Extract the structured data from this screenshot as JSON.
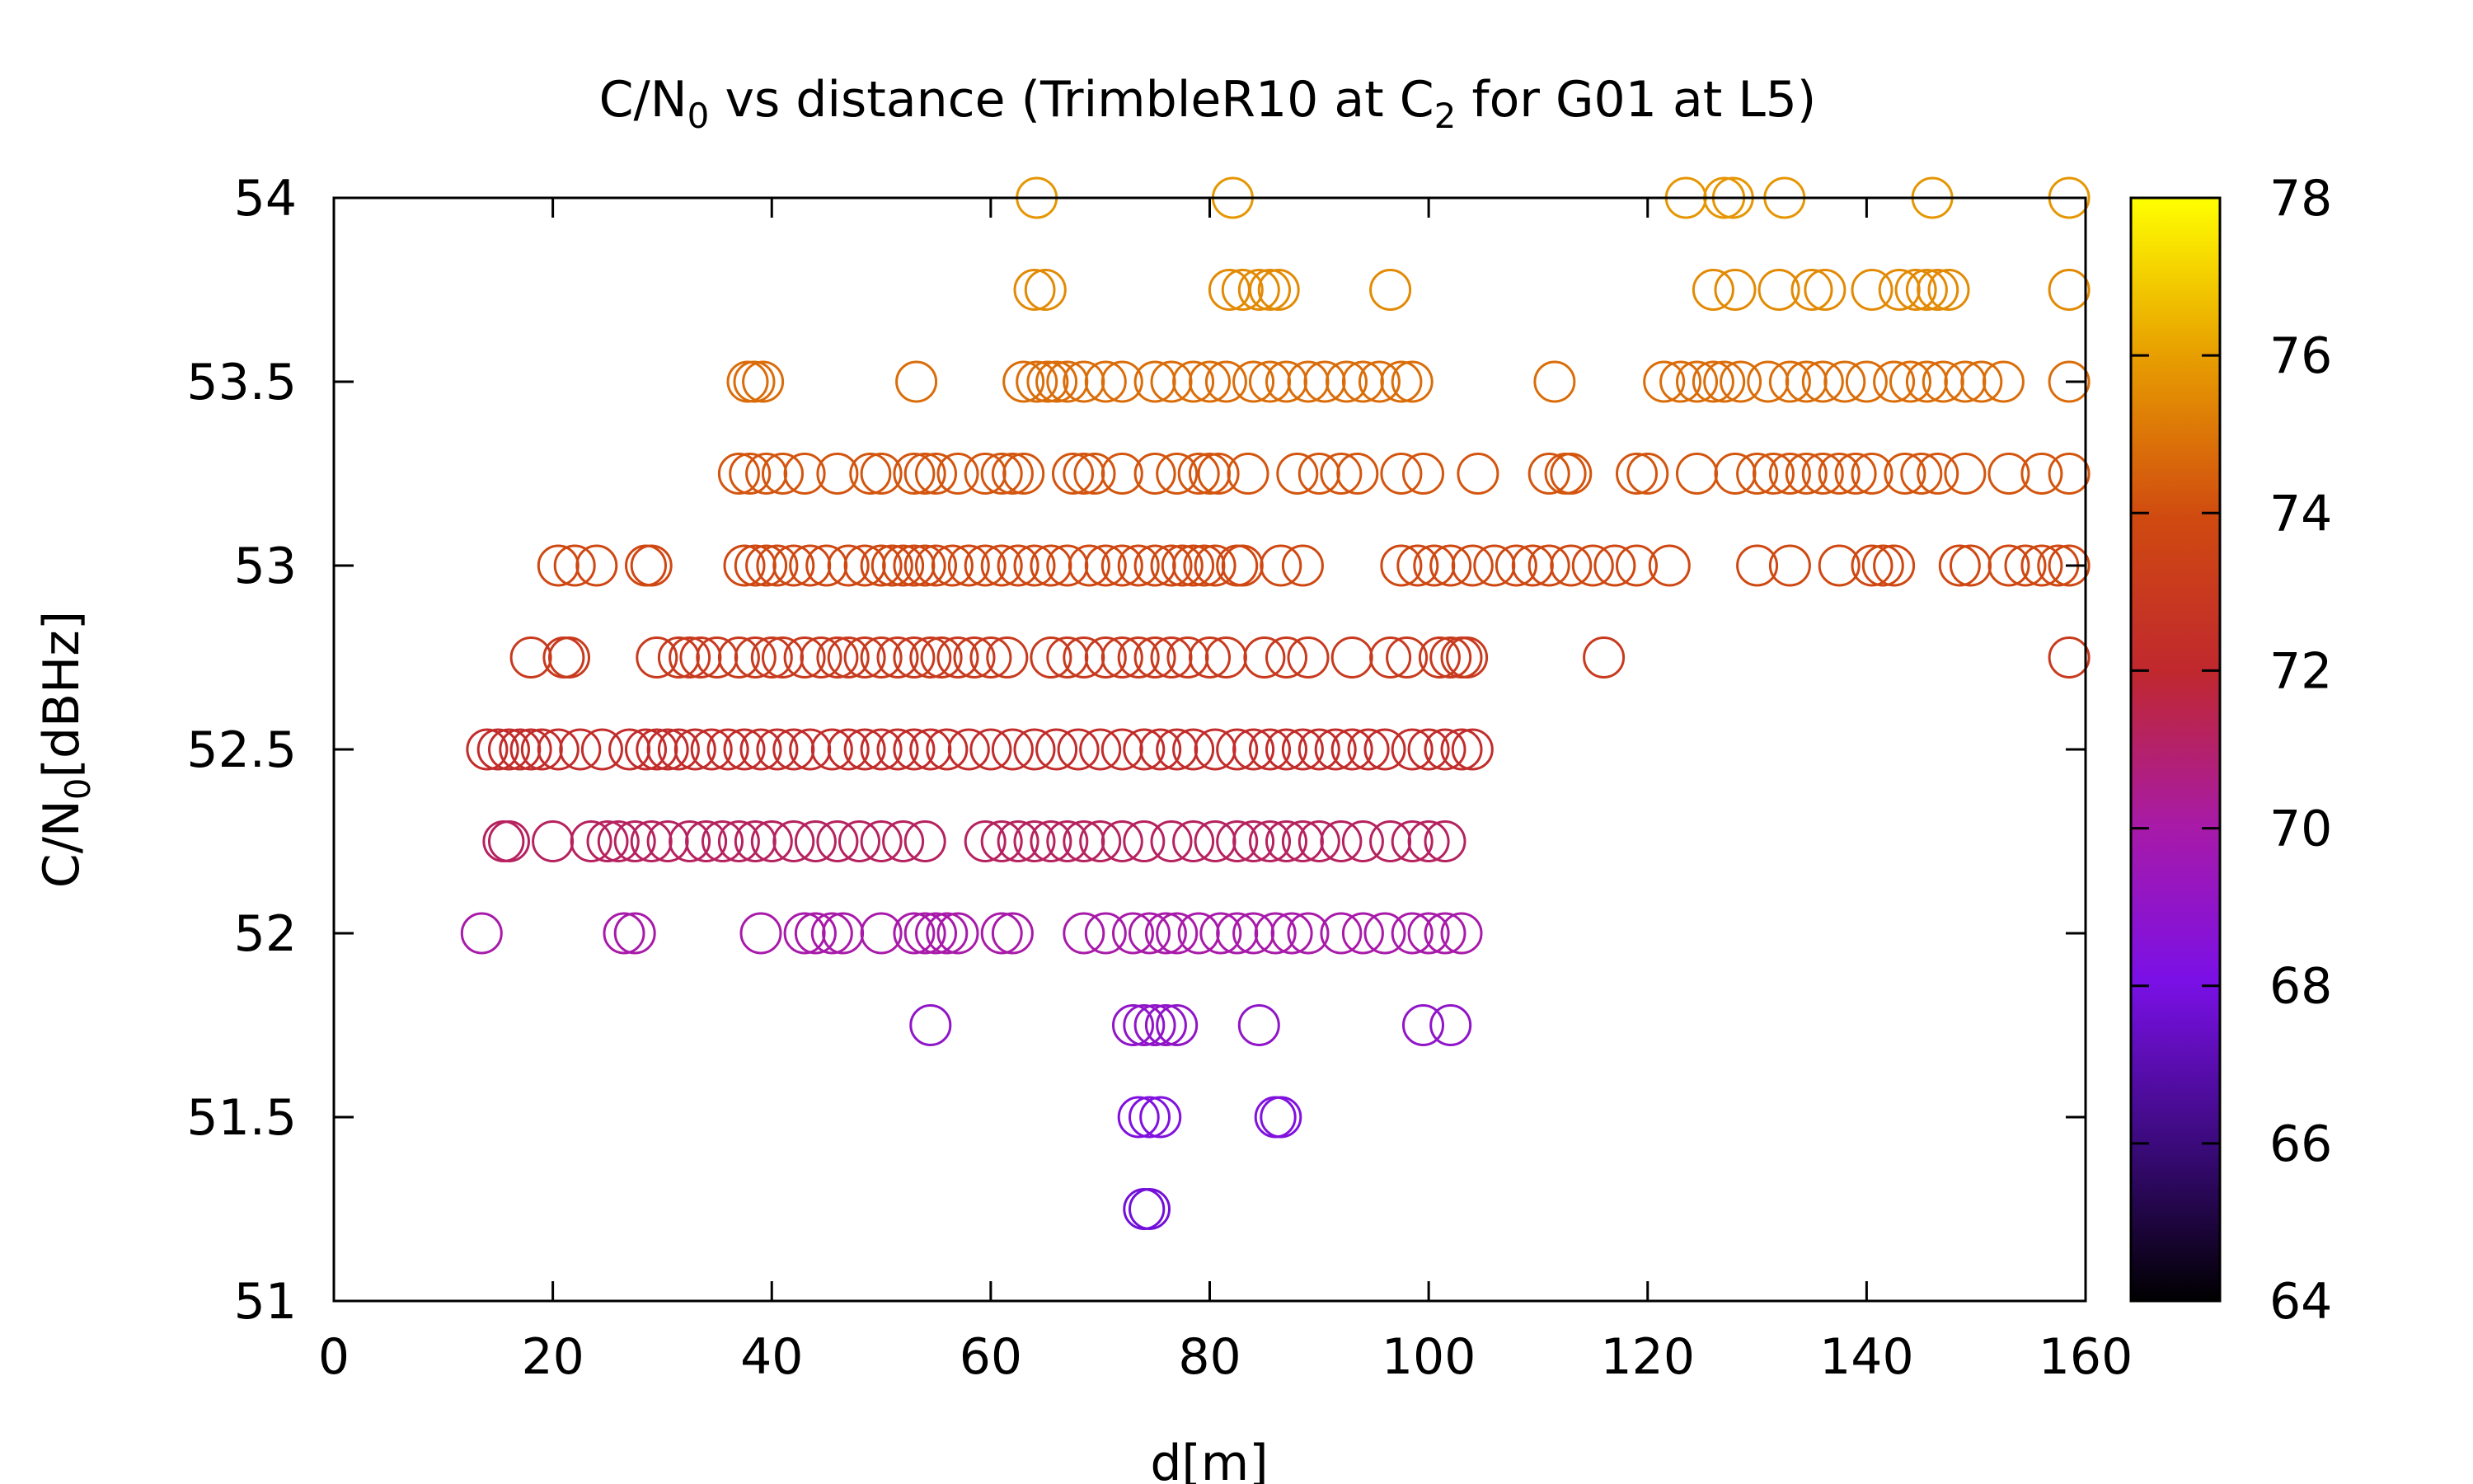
{
  "chart_data": {
    "type": "scatter",
    "title": "C/N0 vs distance (TrimbleR10 at C2 for G01 at L5)",
    "title_parts": {
      "a": "C/N",
      "a_sub": "0",
      "b": " vs distance (TrimbleR10 at C",
      "b_sub": "2",
      "c": " for G01 at L5)"
    },
    "xlabel": "d[m]",
    "ylabel_parts": {
      "a": "C/N",
      "a_sub": "0",
      "b": "[dBHz]"
    },
    "xlim": [
      0,
      160
    ],
    "ylim": [
      51,
      54
    ],
    "xticks": [
      "0",
      "20",
      "40",
      "60",
      "80",
      "100",
      "120",
      "140",
      "160"
    ],
    "yticks": [
      "51",
      "51.5",
      "52",
      "52.5",
      "53",
      "53.5",
      "54"
    ],
    "colorbar": {
      "range": [
        64,
        78
      ],
      "ticks": [
        "64",
        "66",
        "68",
        "70",
        "72",
        "74",
        "76",
        "78"
      ],
      "palette": "gnuplot pm3d (black-blue-purple-red-orange-yellow)"
    },
    "marker": "open circle",
    "grid": false,
    "groups": [
      {
        "y": 54,
        "color_value": 75.8,
        "x": [
          64.2,
          82.1,
          123.5,
          127.0,
          127.8,
          132.5,
          146.0,
          158.5
        ]
      },
      {
        "y": 53.75,
        "color_value": 75.5,
        "x": [
          64.0,
          65.0,
          81.8,
          83.0,
          84.5,
          85.5,
          86.3,
          96.5,
          126.0,
          128.0,
          132.0,
          135.0,
          136.2,
          140.5,
          143.0,
          144.5,
          145.5,
          146.5,
          147.5,
          158.5
        ]
      },
      {
        "y": 53.5,
        "color_value": 74.8,
        "x": [
          37.8,
          38.4,
          39.2,
          53.2,
          63.0,
          64.2,
          65.2,
          66.0,
          67.0,
          68.5,
          70.5,
          72.0,
          75.0,
          76.5,
          78.5,
          80.0,
          81.5,
          84.0,
          85.5,
          87.0,
          89.0,
          90.5,
          92.5,
          94.0,
          95.5,
          97.5,
          98.5,
          111.5,
          121.5,
          123.0,
          124.5,
          126.0,
          127.0,
          128.5,
          131.0,
          133.0,
          134.5,
          136.0,
          138.0,
          140.0,
          142.5,
          144.0,
          145.5,
          147.0,
          149.0,
          150.5,
          152.5,
          158.5
        ]
      },
      {
        "y": 53.25,
        "color_value": 74.2,
        "x": [
          37.0,
          38.0,
          39.5,
          41.0,
          43.0,
          46.0,
          49.0,
          50.0,
          53.0,
          54.0,
          55.0,
          57.0,
          59.5,
          61.0,
          62.0,
          63.0,
          67.5,
          68.5,
          69.5,
          72.0,
          75.0,
          77.0,
          79.0,
          80.0,
          80.8,
          83.5,
          88.0,
          90.0,
          92.0,
          93.5,
          97.5,
          99.5,
          104.5,
          111.0,
          112.5,
          113.0,
          119.0,
          120.0,
          124.5,
          128.0,
          130.0,
          131.5,
          133.0,
          134.5,
          136.0,
          137.5,
          139.0,
          140.5,
          143.5,
          145.0,
          146.5,
          149.0,
          153.0,
          156.0,
          158.5
        ]
      },
      {
        "y": 53,
        "color_value": 73.8,
        "x": [
          20.5,
          22.0,
          24.0,
          28.5,
          29.0,
          37.5,
          38.5,
          39.5,
          40.5,
          42.0,
          43.5,
          45.0,
          47.0,
          48.5,
          50.0,
          51.0,
          52.0,
          53.0,
          54.0,
          55.0,
          56.5,
          58.0,
          59.5,
          61.0,
          62.5,
          64.0,
          65.5,
          67.0,
          69.0,
          70.5,
          72.0,
          73.5,
          75.0,
          76.5,
          77.5,
          78.5,
          79.5,
          80.5,
          82.5,
          83.0,
          86.5,
          88.5,
          97.5,
          99.0,
          100.5,
          102.0,
          104.0,
          106.0,
          108.0,
          109.5,
          111.0,
          113.0,
          115.0,
          117.0,
          119.0,
          122.0,
          130.0,
          133.0,
          137.5,
          140.5,
          141.5,
          142.5,
          148.5,
          149.5,
          153.0,
          154.5,
          156.0,
          157.5,
          158.5
        ]
      },
      {
        "y": 52.75,
        "color_value": 73.0,
        "x": [
          18.0,
          21.0,
          21.5,
          29.5,
          31.5,
          32.5,
          33.5,
          35.0,
          37.0,
          38.5,
          40.0,
          41.0,
          43.0,
          44.5,
          46.0,
          47.0,
          48.5,
          50.0,
          51.5,
          53.0,
          54.5,
          55.5,
          57.0,
          58.5,
          60.0,
          61.5,
          65.5,
          67.0,
          68.5,
          70.5,
          72.0,
          73.5,
          75.0,
          76.5,
          78.0,
          80.0,
          81.5,
          85.0,
          87.0,
          89.0,
          93.0,
          96.5,
          98.0,
          101.0,
          102.0,
          103.0,
          103.5,
          116.0,
          158.5
        ]
      },
      {
        "y": 52.5,
        "color_value": 72.2,
        "x": [
          14.0,
          15.0,
          16.0,
          17.0,
          18.0,
          19.0,
          20.5,
          22.5,
          24.5,
          27.0,
          28.5,
          29.5,
          30.5,
          31.5,
          33.0,
          34.5,
          36.0,
          37.5,
          39.0,
          40.5,
          42.0,
          43.5,
          45.5,
          47.0,
          48.5,
          50.0,
          51.5,
          53.0,
          54.5,
          56.0,
          58.0,
          60.0,
          62.0,
          64.0,
          66.0,
          68.0,
          70.0,
          72.0,
          74.0,
          75.5,
          77.0,
          78.5,
          80.5,
          82.5,
          84.0,
          85.5,
          87.0,
          88.5,
          90.0,
          91.5,
          93.0,
          94.5,
          96.0,
          98.5,
          100.0,
          101.5,
          103.0,
          104.0
        ]
      },
      {
        "y": 52.25,
        "color_value": 71.2,
        "x": [
          15.5,
          16.0,
          20.0,
          23.5,
          25.0,
          26.0,
          27.5,
          29.0,
          30.5,
          32.5,
          34.0,
          35.5,
          37.0,
          38.5,
          40.0,
          42.0,
          44.0,
          46.0,
          48.0,
          50.0,
          52.0,
          54.0,
          59.5,
          61.0,
          62.5,
          64.0,
          65.5,
          67.0,
          68.5,
          70.0,
          72.0,
          74.0,
          76.5,
          78.5,
          80.5,
          82.5,
          84.0,
          85.5,
          87.0,
          88.5,
          90.0,
          92.0,
          94.0,
          96.5,
          98.5,
          100.0,
          101.5
        ]
      },
      {
        "y": 52,
        "color_value": 70.0,
        "x": [
          13.5,
          26.5,
          27.5,
          39.0,
          43.0,
          44.0,
          45.5,
          46.5,
          50.0,
          53.0,
          54.0,
          55.0,
          56.0,
          57.0,
          61.0,
          62.0,
          68.5,
          70.5,
          73.0,
          74.5,
          76.0,
          77.0,
          79.0,
          81.0,
          82.5,
          84.0,
          86.0,
          87.5,
          89.0,
          92.0,
          94.0,
          96.0,
          98.5,
          100.0,
          101.5,
          103.0
        ]
      },
      {
        "y": 51.75,
        "color_value": 69.0,
        "x": [
          54.5,
          73.0,
          74.0,
          75.0,
          76.0,
          77.0,
          84.5,
          99.5,
          102.0
        ]
      },
      {
        "y": 51.5,
        "color_value": 68.3,
        "x": [
          73.5,
          74.5,
          75.5,
          86.0,
          86.5
        ]
      },
      {
        "y": 51.25,
        "color_value": 67.8,
        "x": [
          74.0,
          74.5
        ]
      }
    ]
  }
}
